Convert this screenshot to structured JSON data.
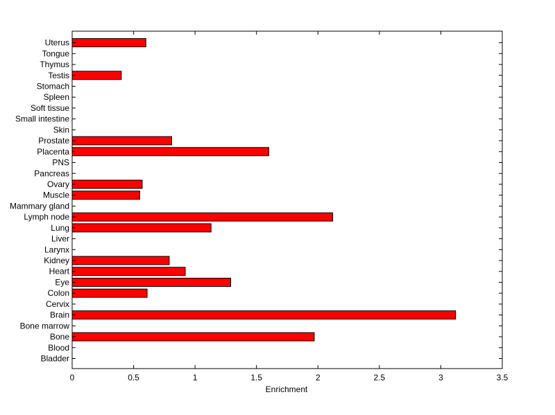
{
  "chart_data": {
    "type": "bar",
    "orientation": "horizontal",
    "title": "",
    "xlabel": "Enrichment",
    "ylabel": "",
    "xlim": [
      0,
      3.5
    ],
    "x_ticks": [
      0,
      0.5,
      1,
      1.5,
      2,
      2.5,
      3,
      3.5
    ],
    "x_tick_labels": [
      "0",
      "0.5",
      "1",
      "1.5",
      "2",
      "2.5",
      "3",
      "3.5"
    ],
    "categories": [
      "Bladder",
      "Blood",
      "Bone",
      "Bone marrow",
      "Brain",
      "Cervix",
      "Colon",
      "Eye",
      "Heart",
      "Kidney",
      "Larynx",
      "Liver",
      "Lung",
      "Lymph node",
      "Mammary gland",
      "Muscle",
      "Ovary",
      "Pancreas",
      "PNS",
      "Placenta",
      "Prostate",
      "Skin",
      "Small intestine",
      "Soft tissue",
      "Spleen",
      "Stomach",
      "Testis",
      "Thymus",
      "Tongue",
      "Uterus"
    ],
    "values": [
      0,
      0,
      1.97,
      0,
      3.12,
      0,
      0.61,
      1.29,
      0.92,
      0.79,
      0,
      0,
      1.13,
      2.12,
      0,
      0.55,
      0.57,
      0,
      0,
      1.6,
      0.81,
      0,
      0,
      0,
      0,
      0,
      0.4,
      0,
      0,
      0.6
    ],
    "bar_color": "#ff0000",
    "bar_edge_color": "#000000",
    "grid": false
  }
}
